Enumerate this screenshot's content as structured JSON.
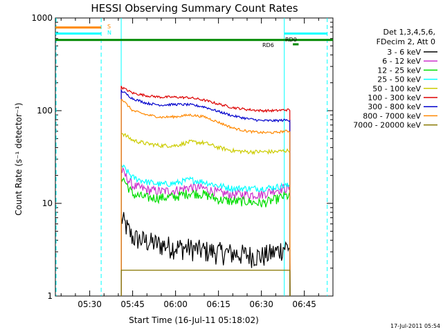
{
  "chart_data": {
    "type": "line",
    "title": "HESSI Observing Summary Count Rates",
    "xlabel": "Start Time (16-Jul-11 05:18:02)",
    "ylabel": "Count Rate (s⁻¹ detector⁻¹)",
    "y_scale": "log",
    "ylim": [
      1,
      1000
    ],
    "xlim": [
      "05:18",
      "06:55"
    ],
    "x_ticks": [
      "05:30",
      "05:45",
      "06:00",
      "06:15",
      "06:30",
      "06:45"
    ],
    "y_ticks": [
      "1",
      "10",
      "100",
      "1000"
    ],
    "grid": false,
    "legend_position": "right",
    "legend_header": [
      "Det 1,3,4,5,6,",
      "FDecim 2, Att 0"
    ],
    "x": [
      "05:41",
      "05:45",
      "05:50",
      "05:55",
      "06:00",
      "06:05",
      "06:10",
      "06:15",
      "06:20",
      "06:25",
      "06:30",
      "06:35",
      "06:38"
    ],
    "series": [
      {
        "name": "3 - 6 keV",
        "color": "#000000",
        "values": [
          7,
          4.3,
          3.9,
          3.6,
          3.4,
          3.3,
          3.1,
          3.0,
          2.9,
          2.8,
          2.7,
          3.0,
          3.4
        ]
      },
      {
        "name": "6 - 12 keV",
        "color": "#cc33cc",
        "values": [
          23,
          15.5,
          14,
          13.5,
          13.8,
          15,
          14.5,
          13,
          12.5,
          12.5,
          12.5,
          14,
          14.5
        ]
      },
      {
        "name": "12 - 25 keV",
        "color": "#00dd00",
        "values": [
          20,
          12.5,
          11.5,
          11.5,
          11.8,
          13,
          12.5,
          11,
          10.5,
          10.5,
          10,
          11,
          12
        ]
      },
      {
        "name": "25 - 50 keV",
        "color": "#00ffff",
        "values": [
          26,
          19,
          17,
          16,
          16.5,
          18,
          17,
          15.5,
          14.5,
          14.5,
          14.5,
          15,
          15.5
        ]
      },
      {
        "name": "50 - 100 keV",
        "color": "#cccc00",
        "values": [
          58,
          48,
          44,
          42,
          42,
          46,
          45,
          40,
          37,
          36,
          36,
          36,
          37
        ]
      },
      {
        "name": "100 - 300 keV",
        "color": "#dd0000",
        "values": [
          180,
          155,
          145,
          140,
          140,
          138,
          130,
          118,
          108,
          103,
          100,
          100,
          102
        ]
      },
      {
        "name": "300 - 800 keV",
        "color": "#0000cc",
        "values": [
          165,
          135,
          120,
          115,
          117,
          116,
          110,
          98,
          88,
          82,
          78,
          78,
          79
        ]
      },
      {
        "name": "800 - 7000 keV",
        "color": "#ff8800",
        "values": [
          135,
          100,
          90,
          85,
          86,
          90,
          86,
          75,
          65,
          60,
          58,
          58,
          60
        ]
      },
      {
        "name": "7000 - 20000 keV",
        "color": "#887700",
        "values": [
          1.9,
          1.9,
          1.9,
          1.9,
          1.9,
          1.9,
          1.9,
          1.9,
          1.9,
          1.9,
          1.9,
          1.9,
          1.9
        ]
      }
    ],
    "annotations": {
      "saa_label": "S",
      "night_label": "N",
      "rd_lower_label": "RD6",
      "rd_upper_label": "RD0",
      "orbit_bars": [
        {
          "name": "saa",
          "color": "#ff8800",
          "value": 790,
          "x_start": "05:18",
          "x_end": "05:34"
        },
        {
          "name": "night",
          "color": "#00ffff",
          "value": 680,
          "x_start": "05:18",
          "x_end": "05:34"
        },
        {
          "name": "night",
          "color": "#00ffff",
          "value": 680,
          "x_start": "06:38",
          "x_end": "06:53"
        },
        {
          "name": "data-gap",
          "color": "#008800",
          "value": 580,
          "x_start": "05:18",
          "x_end": "06:55"
        },
        {
          "name": "rd",
          "color": "#008800",
          "value": 520,
          "x_start": "06:41",
          "x_end": "06:43"
        }
      ],
      "night_markers": [
        "05:18",
        "05:41",
        "06:38",
        "06:53"
      ],
      "saa_markers": [
        "05:34"
      ]
    },
    "footer_timestamp": "17-Jul-2011 05:54"
  }
}
